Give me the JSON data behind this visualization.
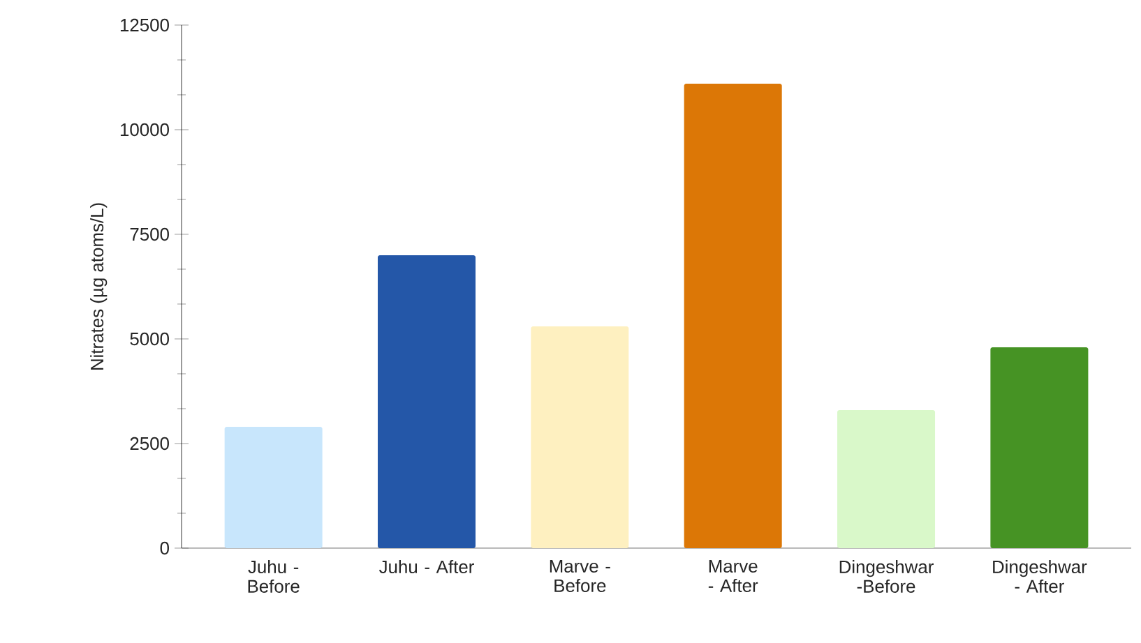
{
  "chart_data": {
    "type": "bar",
    "ylabel": "Nitrates (µg atoms/L)",
    "categories": [
      "Juhu - Before",
      "Juhu - After",
      "Marve - Before",
      "Marve - After",
      "Dingeshwar -Before",
      "Dingeshwar - After"
    ],
    "values": [
      2900,
      7000,
      5300,
      11100,
      3300,
      4800
    ],
    "colors": [
      "#c8e6fc",
      "#2457a8",
      "#fef0c0",
      "#dc7706",
      "#d9f8c9",
      "#469324"
    ],
    "ylim": [
      0,
      12500
    ],
    "yticks": [
      0,
      2500,
      5000,
      7500,
      10000,
      12500
    ]
  }
}
